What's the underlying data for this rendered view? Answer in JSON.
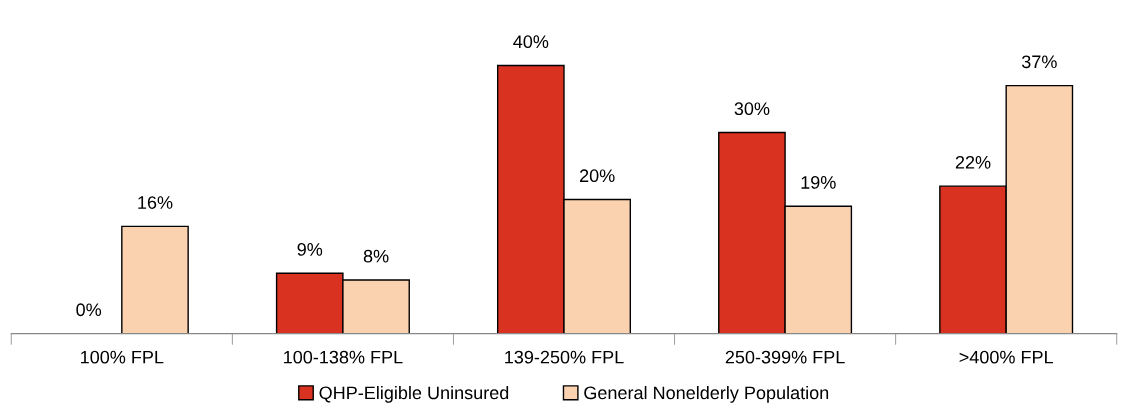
{
  "chart_data": {
    "type": "bar",
    "categories": [
      "100% FPL",
      "100-138% FPL",
      "139-250% FPL",
      "250-399% FPL",
      ">400% FPL"
    ],
    "series": [
      {
        "name": "QHP-Eligible Uninsured",
        "color": "#d93220",
        "values": [
          0,
          9,
          40,
          30,
          22
        ],
        "value_labels": [
          "0%",
          "9%",
          "40%",
          "30%",
          "22%"
        ]
      },
      {
        "name": "General Nonelderly Population",
        "color": "#fbd2b0",
        "values": [
          16,
          8,
          20,
          19,
          37
        ],
        "value_labels": [
          "16%",
          "8%",
          "20%",
          "19%",
          "37%"
        ]
      }
    ],
    "legend": "bottom",
    "grid": false
  }
}
